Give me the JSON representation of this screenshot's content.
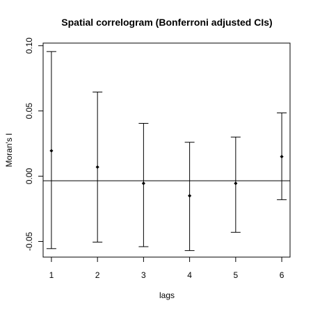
{
  "chart_data": {
    "type": "scatter",
    "title": "Spatial correlogram (Bonferroni adjusted CIs)",
    "xlabel": "lags",
    "ylabel": "Moran's I",
    "x_ticks": [
      "1",
      "2",
      "3",
      "4",
      "5",
      "6"
    ],
    "y_ticks": [
      "-0.05",
      "0.00",
      "0.05",
      "0.10"
    ],
    "ylim": [
      -0.062,
      0.102
    ],
    "xlim": [
      0.82,
      6.18
    ],
    "points": [
      {
        "lag": 1,
        "estimate": 0.0195,
        "lower": -0.0555,
        "upper": 0.0955
      },
      {
        "lag": 2,
        "estimate": 0.007,
        "lower": -0.0505,
        "upper": 0.0645
      },
      {
        "lag": 3,
        "estimate": -0.0055,
        "lower": -0.054,
        "upper": 0.0405
      },
      {
        "lag": 4,
        "estimate": -0.015,
        "lower": -0.057,
        "upper": 0.026
      },
      {
        "lag": 5,
        "estimate": -0.0055,
        "lower": -0.043,
        "upper": 0.03
      },
      {
        "lag": 6,
        "estimate": 0.015,
        "lower": -0.018,
        "upper": 0.0485
      }
    ],
    "reference_line": -0.0035,
    "grid": false,
    "legend": "none"
  }
}
